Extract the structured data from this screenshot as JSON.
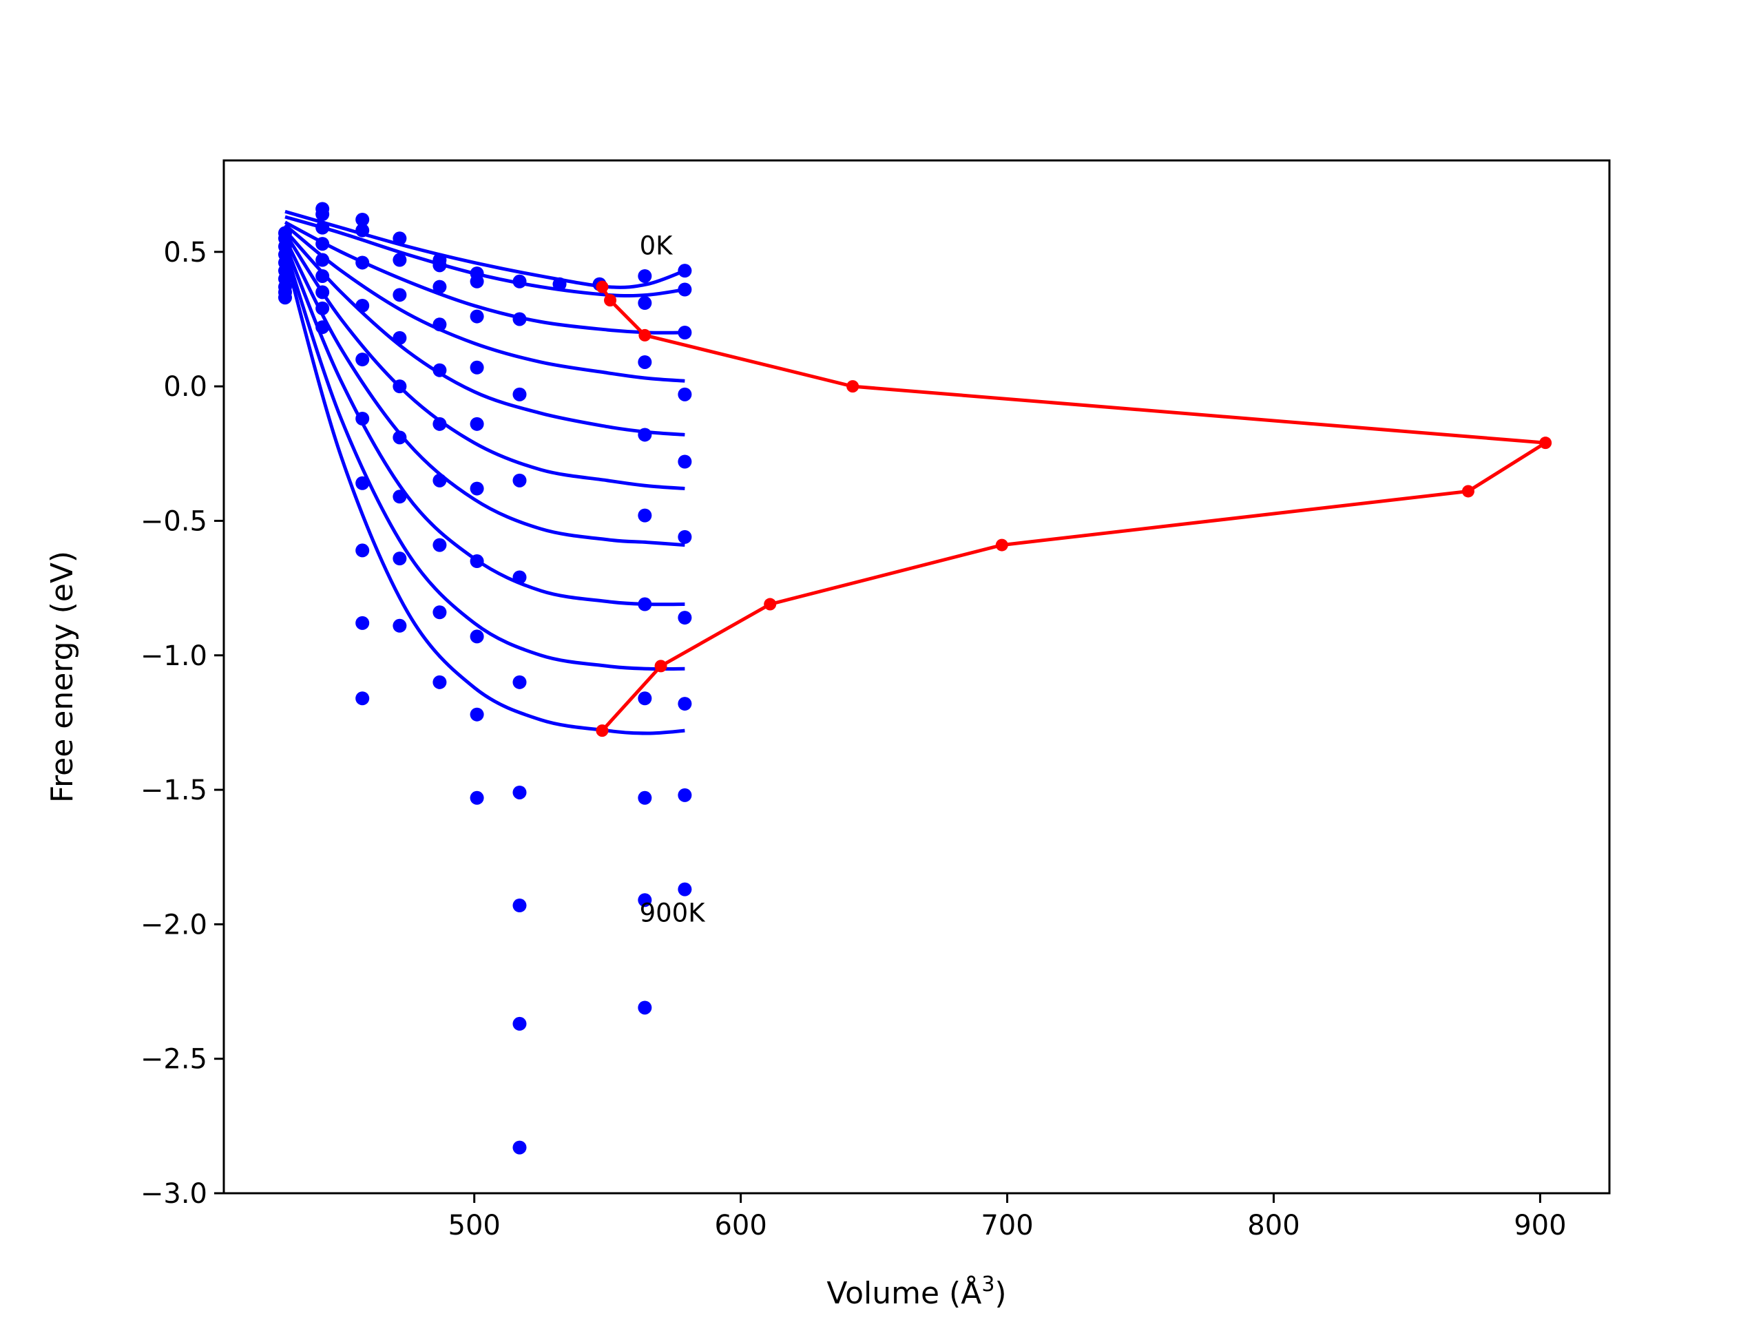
{
  "chart_data": {
    "type": "scatter",
    "xlabel_prefix": "Volume (",
    "xlabel_unit": "Å",
    "xlabel_exp": "3",
    "xlabel_suffix": ")",
    "ylabel": "Free energy (eV)",
    "xlim": [
      406,
      926
    ],
    "ylim": [
      -3.0,
      0.84
    ],
    "xticks": [
      500,
      600,
      700,
      800,
      900
    ],
    "yticks": [
      0.5,
      0.0,
      -0.5,
      -1.0,
      -1.5,
      -2.0,
      -2.5,
      -3.0
    ],
    "ytick_labels": [
      "0.5",
      "0.0",
      "−0.5",
      "−1.0",
      "−1.5",
      "−2.0",
      "−2.5",
      "−3.0"
    ],
    "colors": {
      "fit": "#0000ff",
      "points": "#0000ff",
      "minima": "#ff0000",
      "axes": "#000000"
    },
    "annotations": [
      {
        "text": "0K",
        "x": 562,
        "y": 0.49
      },
      {
        "text": "900K",
        "x": 562,
        "y": -1.99
      }
    ],
    "points": [
      [
        429,
        0.57
      ],
      [
        429,
        0.55
      ],
      [
        429,
        0.52
      ],
      [
        429,
        0.49
      ],
      [
        429,
        0.46
      ],
      [
        429,
        0.43
      ],
      [
        429,
        0.4
      ],
      [
        429,
        0.37
      ],
      [
        429,
        0.35
      ],
      [
        429,
        0.33
      ],
      [
        443,
        0.66
      ],
      [
        443,
        0.64
      ],
      [
        443,
        0.59
      ],
      [
        443,
        0.53
      ],
      [
        443,
        0.47
      ],
      [
        443,
        0.41
      ],
      [
        443,
        0.35
      ],
      [
        443,
        0.29
      ],
      [
        443,
        0.22
      ],
      [
        458,
        0.62
      ],
      [
        458,
        0.58
      ],
      [
        458,
        0.46
      ],
      [
        458,
        0.3
      ],
      [
        458,
        0.1
      ],
      [
        458,
        -0.12
      ],
      [
        458,
        -0.36
      ],
      [
        458,
        -0.61
      ],
      [
        458,
        -0.88
      ],
      [
        458,
        -1.16
      ],
      [
        472,
        0.55
      ],
      [
        472,
        0.47
      ],
      [
        472,
        0.34
      ],
      [
        472,
        0.18
      ],
      [
        472,
        0.0
      ],
      [
        472,
        -0.19
      ],
      [
        472,
        -0.41
      ],
      [
        472,
        -0.64
      ],
      [
        472,
        -0.89
      ],
      [
        487,
        0.47
      ],
      [
        487,
        0.45
      ],
      [
        487,
        0.37
      ],
      [
        487,
        0.23
      ],
      [
        487,
        0.06
      ],
      [
        487,
        -0.14
      ],
      [
        487,
        -0.35
      ],
      [
        487,
        -0.59
      ],
      [
        487,
        -0.84
      ],
      [
        487,
        -1.1
      ],
      [
        501,
        0.42
      ],
      [
        501,
        0.39
      ],
      [
        501,
        0.26
      ],
      [
        501,
        0.07
      ],
      [
        501,
        -0.14
      ],
      [
        501,
        -0.38
      ],
      [
        501,
        -0.65
      ],
      [
        501,
        -0.93
      ],
      [
        501,
        -1.22
      ],
      [
        501,
        -1.53
      ],
      [
        517,
        0.39
      ],
      [
        517,
        0.25
      ],
      [
        517,
        -0.03
      ],
      [
        517,
        -0.35
      ],
      [
        517,
        -0.71
      ],
      [
        517,
        -1.1
      ],
      [
        517,
        -1.51
      ],
      [
        517,
        -1.93
      ],
      [
        517,
        -2.37
      ],
      [
        517,
        -2.83
      ],
      [
        532,
        0.38
      ],
      [
        547,
        0.38
      ],
      [
        564,
        0.41
      ],
      [
        564,
        0.31
      ],
      [
        564,
        0.09
      ],
      [
        564,
        -0.18
      ],
      [
        564,
        -0.48
      ],
      [
        564,
        -0.81
      ],
      [
        564,
        -1.16
      ],
      [
        564,
        -1.53
      ],
      [
        564,
        -1.91
      ],
      [
        564,
        -2.31
      ],
      [
        579,
        0.43
      ],
      [
        579,
        0.36
      ],
      [
        579,
        0.2
      ],
      [
        579,
        -0.03
      ],
      [
        579,
        -0.28
      ],
      [
        579,
        -0.56
      ],
      [
        579,
        -0.86
      ],
      [
        579,
        -1.18
      ],
      [
        579,
        -1.52
      ],
      [
        579,
        -1.87
      ]
    ],
    "fit_curves": [
      {
        "x": [
          429,
          450,
          475,
          500,
          525,
          550,
          565,
          579
        ],
        "y": [
          0.65,
          0.59,
          0.52,
          0.46,
          0.41,
          0.37,
          0.38,
          0.43
        ]
      },
      {
        "x": [
          429,
          450,
          475,
          500,
          525,
          550,
          565,
          579
        ],
        "y": [
          0.63,
          0.57,
          0.49,
          0.42,
          0.37,
          0.34,
          0.34,
          0.36
        ]
      },
      {
        "x": [
          429,
          450,
          475,
          500,
          525,
          550,
          565,
          579
        ],
        "y": [
          0.61,
          0.5,
          0.39,
          0.3,
          0.24,
          0.21,
          0.2,
          0.2
        ]
      },
      {
        "x": [
          429,
          450,
          475,
          500,
          525,
          550,
          565,
          579
        ],
        "y": [
          0.6,
          0.43,
          0.27,
          0.16,
          0.09,
          0.05,
          0.03,
          0.02
        ]
      },
      {
        "x": [
          429,
          450,
          475,
          500,
          525,
          550,
          565,
          579
        ],
        "y": [
          0.58,
          0.35,
          0.13,
          -0.02,
          -0.1,
          -0.15,
          -0.17,
          -0.18
        ]
      },
      {
        "x": [
          429,
          450,
          475,
          500,
          525,
          550,
          565,
          579
        ],
        "y": [
          0.57,
          0.25,
          -0.03,
          -0.21,
          -0.31,
          -0.35,
          -0.37,
          -0.38
        ]
      },
      {
        "x": [
          429,
          450,
          475,
          500,
          525,
          550,
          565,
          579
        ],
        "y": [
          0.55,
          0.14,
          -0.21,
          -0.42,
          -0.53,
          -0.57,
          -0.58,
          -0.59
        ]
      },
      {
        "x": [
          429,
          450,
          475,
          500,
          525,
          550,
          565,
          579
        ],
        "y": [
          0.53,
          0.02,
          -0.41,
          -0.64,
          -0.76,
          -0.8,
          -0.81,
          -0.81
        ]
      },
      {
        "x": [
          429,
          450,
          475,
          500,
          525,
          550,
          565,
          579
        ],
        "y": [
          0.51,
          -0.12,
          -0.62,
          -0.88,
          -1.0,
          -1.04,
          -1.05,
          -1.05
        ]
      },
      {
        "x": [
          429,
          450,
          475,
          500,
          525,
          550,
          565,
          579
        ],
        "y": [
          0.49,
          -0.26,
          -0.84,
          -1.12,
          -1.24,
          -1.28,
          -1.29,
          -1.28
        ]
      }
    ],
    "minima_line": {
      "x": [
        548,
        551,
        564,
        642,
        902,
        873,
        698,
        611,
        570,
        548
      ],
      "y": [
        0.37,
        0.32,
        0.19,
        0.0,
        -0.21,
        -0.39,
        -0.59,
        -0.81,
        -1.04,
        -1.28
      ]
    }
  }
}
